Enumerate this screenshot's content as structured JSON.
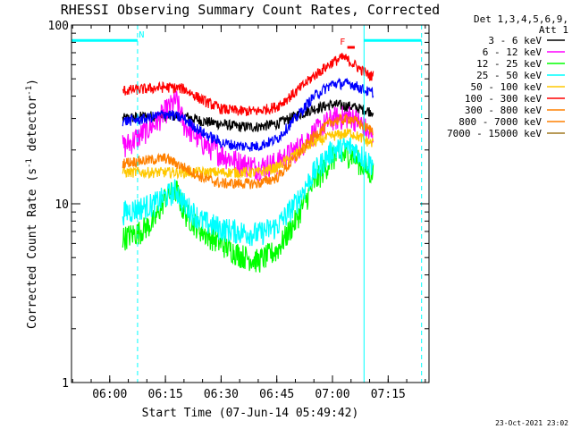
{
  "chart_data": {
    "type": "line",
    "title": "RHESSI Observing Summary Count Rates, Corrected",
    "xlabel": "Start Time (07-Jun-14 05:49:42)",
    "ylabel_main": "Corrected Count Rate (s",
    "ylabel_sup1": "-1",
    "ylabel_mid": " detector",
    "ylabel_sup2": "-1",
    "ylabel_end": ")",
    "ylog": true,
    "ylim": [
      1,
      100
    ],
    "xlim": [
      "05:49:42",
      "07:26:00"
    ],
    "x_ticks": [
      "06:00",
      "06:15",
      "06:30",
      "06:45",
      "07:00",
      "07:15"
    ],
    "y_ticks": [
      "1",
      "10",
      "100"
    ],
    "legend_header": [
      "Det 1,3,4,5,6,9,",
      "Att 1"
    ],
    "legend_position": "right",
    "timestamp": "23-Oct-2021 23:02",
    "data_start": "06:03:30",
    "data_end": "07:11:00",
    "series": [
      {
        "name": "3 - 6 keV",
        "color": "#000000",
        "x": [
          "06:04",
          "06:10",
          "06:15",
          "06:20",
          "06:25",
          "06:30",
          "06:35",
          "06:40",
          "06:45",
          "06:50",
          "06:55",
          "07:00",
          "07:05",
          "07:10"
        ],
        "values": [
          30,
          31,
          31,
          31,
          29,
          28,
          27,
          27,
          28,
          31,
          34,
          36,
          35,
          33
        ]
      },
      {
        "name": "6 - 12 keV",
        "color": "#ff00ff",
        "x": [
          "06:04",
          "06:08",
          "06:12",
          "06:15",
          "06:18",
          "06:20",
          "06:25",
          "06:30",
          "06:35",
          "06:40",
          "06:45",
          "06:50",
          "06:55",
          "07:00",
          "07:05",
          "07:08",
          "07:10"
        ],
        "values": [
          21,
          24,
          28,
          33,
          38,
          28,
          22,
          19,
          17,
          16,
          17,
          20,
          25,
          30,
          31,
          28,
          24
        ]
      },
      {
        "name": "12 - 25 keV",
        "color": "#00ff00",
        "x": [
          "06:04",
          "06:08",
          "06:12",
          "06:15",
          "06:18",
          "06:20",
          "06:25",
          "06:30",
          "06:35",
          "06:40",
          "06:45",
          "06:50",
          "06:55",
          "07:00",
          "07:05",
          "07:10"
        ],
        "values": [
          6.5,
          7,
          8,
          11,
          12,
          9,
          7,
          6,
          5.2,
          4.8,
          5.5,
          8,
          13,
          18,
          19,
          15
        ]
      },
      {
        "name": "25 - 50 keV",
        "color": "#00ffff",
        "x": [
          "06:04",
          "06:08",
          "06:12",
          "06:15",
          "06:18",
          "06:20",
          "06:25",
          "06:30",
          "06:35",
          "06:40",
          "06:45",
          "06:50",
          "06:55",
          "07:00",
          "07:05",
          "07:10"
        ],
        "values": [
          9,
          9.5,
          10,
          11,
          12,
          10,
          8,
          7.3,
          7,
          6.8,
          7.5,
          10,
          15,
          20,
          21,
          17
        ]
      },
      {
        "name": "50 - 100 keV",
        "color": "#ffc800",
        "x": [
          "06:04",
          "06:15",
          "06:25",
          "06:40",
          "06:45",
          "06:50",
          "06:55",
          "07:00",
          "07:05",
          "07:10"
        ],
        "values": [
          15,
          15,
          15,
          15,
          16,
          19,
          22,
          24,
          25,
          22
        ]
      },
      {
        "name": "100 - 300 keV",
        "color": "#ff0000",
        "x": [
          "06:04",
          "06:10",
          "06:15",
          "06:20",
          "06:25",
          "06:30",
          "06:35",
          "06:40",
          "06:45",
          "06:50",
          "06:55",
          "07:00",
          "07:03",
          "07:05",
          "07:10"
        ],
        "values": [
          43,
          44,
          45,
          44,
          38,
          34,
          33,
          33,
          35,
          42,
          52,
          62,
          66,
          62,
          52
        ]
      },
      {
        "name": "300 - 800 keV",
        "color": "#ff8000",
        "x": [
          "06:04",
          "06:10",
          "06:15",
          "06:20",
          "06:25",
          "06:30",
          "06:35",
          "06:40",
          "06:45",
          "06:50",
          "06:55",
          "07:00",
          "07:05",
          "07:10"
        ],
        "values": [
          17,
          17.5,
          18,
          16,
          14,
          13,
          13,
          13,
          14,
          18,
          24,
          29,
          30,
          26
        ]
      },
      {
        "name": "800 - 7000 keV",
        "color": "#ff8000",
        "x": [],
        "values": []
      },
      {
        "name": "7000 - 15000 keV",
        "color": "#a07820",
        "x": [],
        "values": []
      },
      {
        "name": "",
        "color": "#0000ff",
        "x": [
          "06:04",
          "06:10",
          "06:15",
          "06:20",
          "06:25",
          "06:30",
          "06:35",
          "06:40",
          "06:45",
          "06:50",
          "06:55",
          "07:00",
          "07:05",
          "07:10"
        ],
        "values": [
          29,
          30,
          32,
          30,
          25,
          22,
          21,
          21,
          23,
          30,
          40,
          47,
          47,
          42
        ]
      }
    ],
    "attenuator_segments": [
      {
        "x0": "05:49:42",
        "x1": "06:07:30",
        "value": 82
      },
      {
        "x0": "07:08:30",
        "x1": "07:24:00",
        "value": 82
      }
    ],
    "vlines_solid": [
      "05:49:42",
      "07:08:30"
    ],
    "vlines_dashed": [
      "06:07:30",
      "07:24:00"
    ],
    "markers": [
      {
        "label": "N",
        "x": "06:07:50",
        "y": 82
      },
      {
        "label": "F",
        "x": "07:02:00",
        "y": 75
      }
    ],
    "flag_bar": {
      "x0": "07:04:00",
      "x1": "07:06:00",
      "value": 75,
      "color": "#ff0000"
    }
  }
}
